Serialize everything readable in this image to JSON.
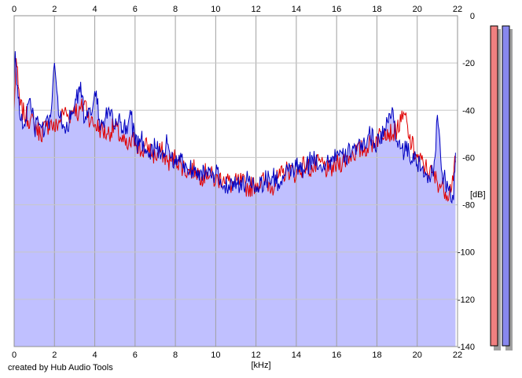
{
  "footer": {
    "credit": "created by Hub Audio Tools"
  },
  "meters": {
    "left_color": "#f08080",
    "right_color": "#8888ee"
  },
  "chart_data": {
    "type": "area",
    "xlabel": "[kHz]",
    "ylabel": "[dB]",
    "xlim": [
      0,
      22
    ],
    "ylim": [
      -140,
      0
    ],
    "x_ticks": [
      0,
      2,
      4,
      6,
      8,
      10,
      12,
      14,
      16,
      18,
      20,
      22
    ],
    "y_ticks": [
      0,
      -20,
      -40,
      -60,
      -80,
      -100,
      -120,
      -140
    ],
    "x_tick_labels": [
      "0",
      "2",
      "4",
      "6",
      "8",
      "10",
      "12",
      "14",
      "16",
      "18",
      "20",
      "22"
    ],
    "y_tick_labels": [
      "0",
      "-20",
      "-40",
      "-60",
      "-80",
      "-100",
      "-120",
      "-140"
    ],
    "grid": true,
    "legend": "none",
    "series": [
      {
        "color": "#e00000",
        "x": [
          0,
          0.1,
          0.2,
          0.3,
          0.5,
          0.8,
          1.0,
          1.3,
          1.6,
          1.8,
          2.0,
          2.3,
          2.5,
          2.7,
          3.0,
          3.2,
          3.5,
          3.8,
          4.0,
          4.3,
          4.6,
          5.0,
          5.3,
          5.6,
          6.0,
          6.3,
          6.6,
          7.0,
          7.3,
          7.6,
          8.0,
          8.3,
          8.6,
          9.0,
          9.3,
          9.6,
          10.0,
          10.4,
          10.8,
          11.2,
          11.6,
          12.0,
          12.4,
          12.8,
          13.2,
          13.6,
          14.0,
          14.4,
          14.8,
          15.2,
          15.6,
          16.0,
          16.4,
          16.8,
          17.2,
          17.6,
          18.0,
          18.4,
          18.8,
          19.2,
          19.4,
          19.6,
          20.0,
          20.4,
          20.8,
          21.2,
          21.6,
          21.9
        ],
        "values": [
          -40,
          -18,
          -30,
          -38,
          -42,
          -44,
          -46,
          -50,
          -47,
          -45,
          -48,
          -44,
          -40,
          -43,
          -38,
          -42,
          -36,
          -45,
          -46,
          -48,
          -50,
          -47,
          -52,
          -56,
          -52,
          -58,
          -55,
          -60,
          -57,
          -62,
          -60,
          -63,
          -66,
          -65,
          -68,
          -66,
          -70,
          -68,
          -72,
          -70,
          -73,
          -71,
          -70,
          -72,
          -68,
          -65,
          -67,
          -63,
          -65,
          -62,
          -66,
          -63,
          -61,
          -58,
          -57,
          -55,
          -52,
          -48,
          -50,
          -45,
          -42,
          -52,
          -60,
          -64,
          -68,
          -72,
          -75,
          -62
        ]
      },
      {
        "color": "#0000c0",
        "x": [
          0,
          0.05,
          0.1,
          0.2,
          0.3,
          0.5,
          0.8,
          1.0,
          1.2,
          1.5,
          1.8,
          2.0,
          2.2,
          2.5,
          2.8,
          3.0,
          3.3,
          3.5,
          3.8,
          4.0,
          4.3,
          4.5,
          4.8,
          5.0,
          5.3,
          5.6,
          5.8,
          6.0,
          6.3,
          6.6,
          7.0,
          7.3,
          7.6,
          8.0,
          8.3,
          8.6,
          9.0,
          9.3,
          9.6,
          10.0,
          10.4,
          10.8,
          11.2,
          11.6,
          12.0,
          12.4,
          12.8,
          13.2,
          13.6,
          14.0,
          14.4,
          14.8,
          15.2,
          15.6,
          16.0,
          16.4,
          16.8,
          17.2,
          17.6,
          18.0,
          18.4,
          18.8,
          19.0,
          19.2,
          19.6,
          20.0,
          20.4,
          20.8,
          21.0,
          21.2,
          21.4,
          21.6,
          21.8,
          21.9
        ],
        "values": [
          -30,
          -15,
          -22,
          -35,
          -44,
          -46,
          -35,
          -48,
          -45,
          -50,
          -43,
          -20,
          -42,
          -47,
          -44,
          -38,
          -28,
          -45,
          -42,
          -32,
          -46,
          -44,
          -40,
          -48,
          -45,
          -50,
          -42,
          -55,
          -52,
          -57,
          -56,
          -59,
          -54,
          -63,
          -60,
          -65,
          -64,
          -66,
          -68,
          -67,
          -72,
          -70,
          -73,
          -69,
          -72,
          -70,
          -68,
          -71,
          -66,
          -64,
          -66,
          -60,
          -63,
          -62,
          -58,
          -61,
          -55,
          -57,
          -50,
          -54,
          -48,
          -40,
          -53,
          -56,
          -58,
          -63,
          -66,
          -68,
          -42,
          -65,
          -70,
          -72,
          -78,
          -58
        ]
      }
    ]
  }
}
